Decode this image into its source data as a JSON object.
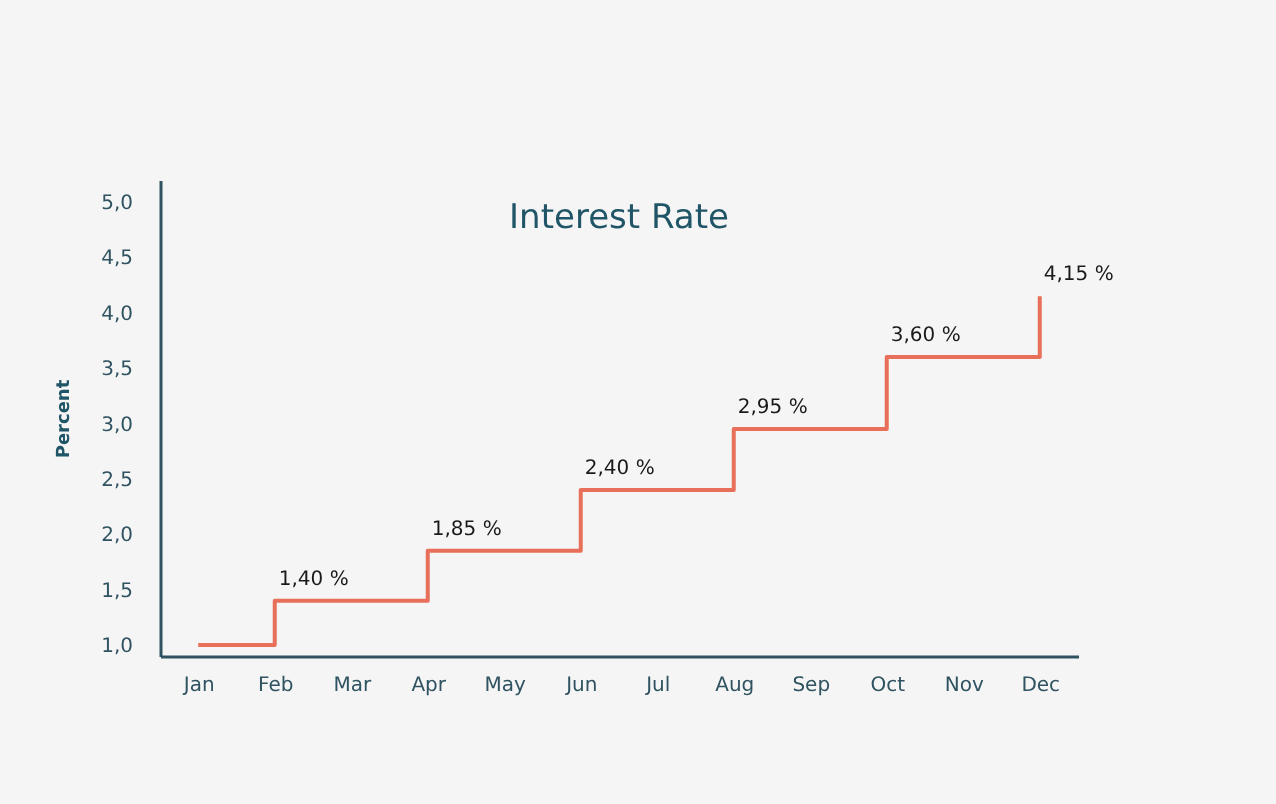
{
  "chart_data": {
    "type": "step",
    "title": "Interest Rate",
    "ylabel": "Percent",
    "categories": [
      "Jan",
      "Feb",
      "Mar",
      "Apr",
      "May",
      "Jun",
      "Jul",
      "Aug",
      "Sep",
      "Oct",
      "Nov",
      "Dec"
    ],
    "series": [
      {
        "color": "#e8705a",
        "values": [
          1.0,
          1.4,
          1.4,
          1.85,
          1.85,
          2.4,
          2.4,
          2.95,
          2.95,
          3.6,
          3.6,
          4.15
        ],
        "value_labels": [
          null,
          "1,40 %",
          null,
          "1,85 %",
          null,
          "2,40 %",
          null,
          "2,95 %",
          null,
          "3,60 %",
          null,
          "4,15 %"
        ]
      }
    ],
    "ylim": [
      0.9,
      5.2
    ],
    "yticks": [
      {
        "value": 1,
        "label": "1,0"
      },
      {
        "value": 1.5,
        "label": "1,5"
      },
      {
        "value": 2,
        "label": "2,0"
      },
      {
        "value": 2.5,
        "label": "2,5"
      },
      {
        "value": 3,
        "label": "3,0"
      },
      {
        "value": 3.5,
        "label": "3,5"
      },
      {
        "value": 4,
        "label": "4,0"
      },
      {
        "value": 4.5,
        "label": "4,5"
      },
      {
        "value": 5,
        "label": "5,0"
      }
    ],
    "grid": false,
    "marker": "none",
    "line_style": "solid"
  }
}
